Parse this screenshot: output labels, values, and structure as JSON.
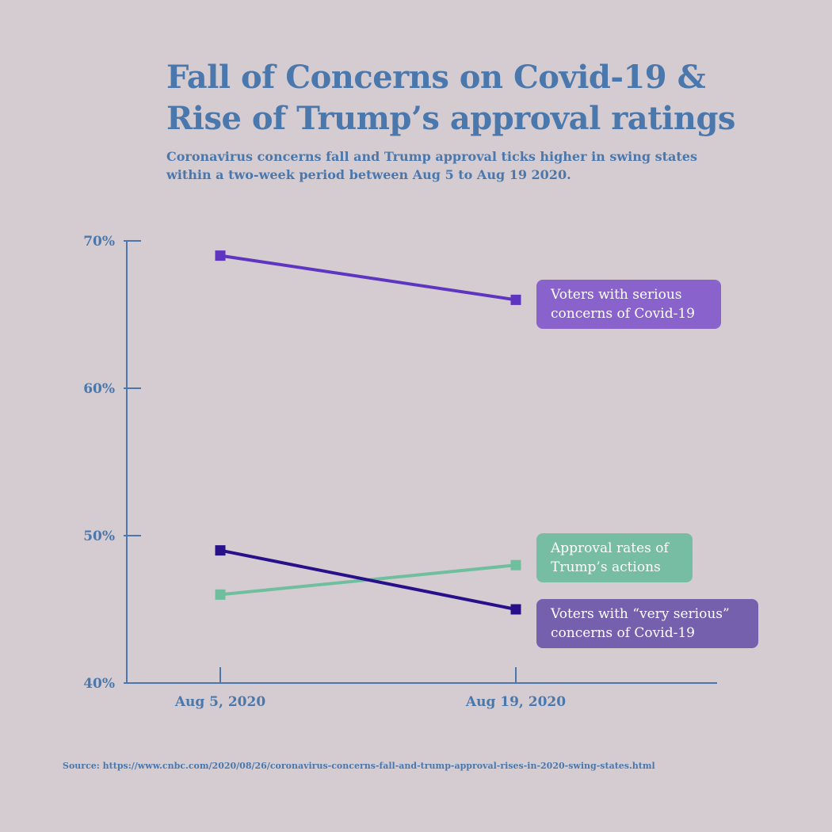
{
  "header": {
    "title_line1": "Fall of Concerns on Covid-19 &",
    "title_line2": "Rise of Trump’s approval ratings",
    "subtitle_line1": "Coronavirus concerns fall and Trump approval ticks higher in swing states",
    "subtitle_line2": "within a two-week period between Aug 5 to Aug 19 2020."
  },
  "chart_data": {
    "type": "line",
    "x": [
      "Aug 5, 2020",
      "Aug 19, 2020"
    ],
    "ylim": [
      40,
      70
    ],
    "y_ticks": [
      70,
      60,
      50,
      40
    ],
    "y_tick_labels": [
      "70%",
      "60%",
      "50%",
      "40%"
    ],
    "series": [
      {
        "name": "Voters with serious concerns of Covid-19",
        "label_lines": [
          "Voters with serious",
          "concerns of Covid-19"
        ],
        "values": [
          69,
          66
        ],
        "color": "#5e35c0",
        "label_color": "#8a62cc"
      },
      {
        "name": "Approval rates of Trump’s actions",
        "label_lines": [
          "Approval rates of",
          "Trump’s actions"
        ],
        "values": [
          46,
          48
        ],
        "color": "#6fbf9e",
        "label_color": "#76bda3"
      },
      {
        "name": "Voters with “very serious” concerns of Covid-19",
        "label_lines": [
          "Voters with “very serious”",
          "concerns of Covid-19"
        ],
        "values": [
          49,
          45
        ],
        "color": "#28108a",
        "label_color": "#7460ad"
      }
    ]
  },
  "footer": {
    "source": "Source: https://www.cnbc.com/2020/08/26/coronavirus-concerns-fall-and-trump-approval-rises-in-2020-swing-states.html"
  }
}
